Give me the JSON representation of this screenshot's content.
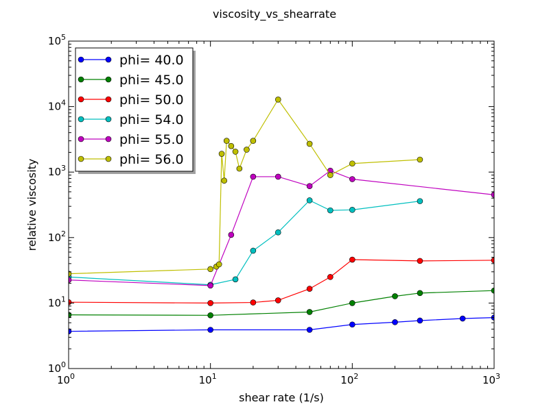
{
  "chart_data": {
    "type": "line",
    "title": "viscosity_vs_shearrate",
    "xlabel": "shear rate (1/s)",
    "ylabel": "relative viscosity",
    "xscale": "log",
    "yscale": "log",
    "xlim": [
      1,
      1000
    ],
    "ylim": [
      1,
      100000
    ],
    "x_ticks": [
      {
        "base": "10",
        "exp": "0"
      },
      {
        "base": "10",
        "exp": "1"
      },
      {
        "base": "10",
        "exp": "2"
      },
      {
        "base": "10",
        "exp": "3"
      }
    ],
    "y_ticks": [
      {
        "base": "10",
        "exp": "0"
      },
      {
        "base": "10",
        "exp": "1"
      },
      {
        "base": "10",
        "exp": "2"
      },
      {
        "base": "10",
        "exp": "3"
      },
      {
        "base": "10",
        "exp": "4"
      },
      {
        "base": "10",
        "exp": "5"
      }
    ],
    "grid": false,
    "legend_position": "top-left",
    "series": [
      {
        "name": "phi= 40.0",
        "color": "#0000ff",
        "x": [
          1,
          10,
          50,
          100,
          200,
          300,
          600,
          1000
        ],
        "y": [
          3.7,
          3.9,
          3.9,
          4.7,
          5.1,
          5.4,
          5.8,
          6.0
        ]
      },
      {
        "name": "phi= 45.0",
        "color": "#008000",
        "x": [
          1,
          10,
          50,
          100,
          200,
          300,
          1000
        ],
        "y": [
          6.6,
          6.5,
          7.3,
          10,
          12.7,
          14.2,
          15.5
        ]
      },
      {
        "name": "phi= 50.0",
        "color": "#ff0000",
        "x": [
          1,
          10,
          20,
          30,
          50,
          70,
          100,
          300,
          1000
        ],
        "y": [
          10.3,
          10,
          10.2,
          11,
          16.5,
          25,
          46,
          44,
          45
        ]
      },
      {
        "name": "phi= 54.0",
        "color": "#00bfbf",
        "x": [
          1,
          10,
          15,
          20,
          30,
          50,
          70,
          100,
          300
        ],
        "y": [
          25,
          19,
          23,
          63,
          120,
          370,
          260,
          265,
          360
        ]
      },
      {
        "name": "phi= 55.0",
        "color": "#bf00bf",
        "x": [
          1,
          10,
          14,
          20,
          30,
          50,
          70,
          100,
          1000
        ],
        "y": [
          22.5,
          18.5,
          110,
          850,
          850,
          610,
          1050,
          780,
          450
        ]
      },
      {
        "name": "phi= 56.0",
        "color": "#bfbf00",
        "x": [
          1,
          10,
          11,
          11.5,
          12,
          12.5,
          13,
          14,
          15,
          16,
          18,
          20,
          30,
          50,
          70,
          100,
          300
        ],
        "y": [
          28,
          33,
          36,
          39,
          1900,
          740,
          3000,
          2500,
          2050,
          1130,
          2200,
          3000,
          12800,
          2700,
          900,
          1350,
          1550
        ]
      }
    ]
  }
}
